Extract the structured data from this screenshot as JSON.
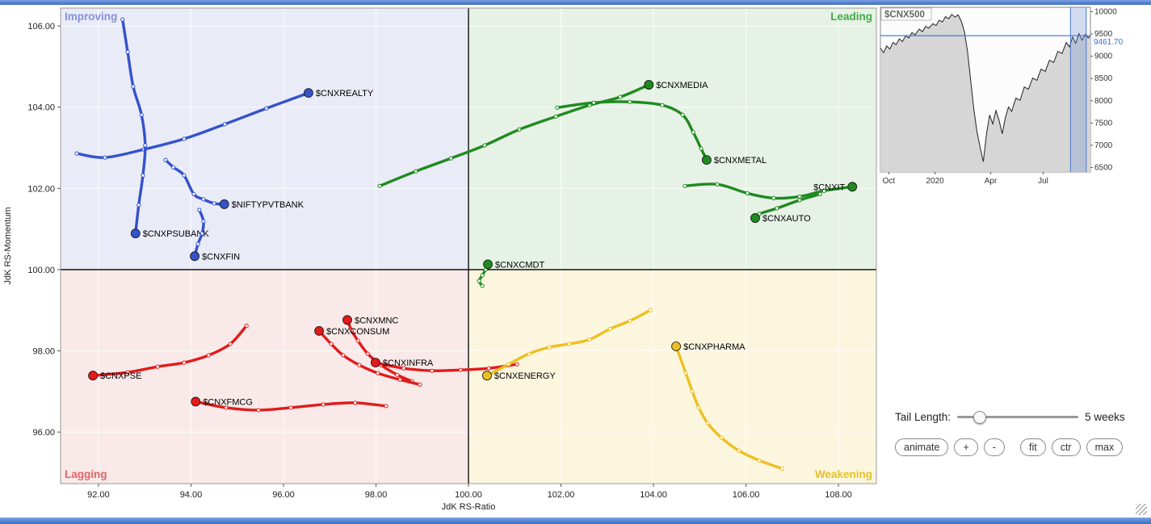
{
  "chart_data": [
    {
      "type": "scatter",
      "xlabel": "JdK RS-Ratio",
      "ylabel": "JdK RS-Momentum",
      "xlim": [
        91.18,
        108.82
      ],
      "ylim": [
        94.73,
        106.44
      ],
      "x_ticks": [
        92,
        94,
        96,
        98,
        100,
        102,
        104,
        106,
        108
      ],
      "y_ticks": [
        96,
        98,
        100,
        102,
        104,
        106
      ],
      "center": [
        100,
        100
      ],
      "quadrants": [
        {
          "name": "Improving",
          "position": "top-left",
          "label_color": "#8690dd",
          "bg": "#e9ebf7"
        },
        {
          "name": "Leading",
          "position": "top-right",
          "label_color": "#44a944",
          "bg": "#e6f2e6"
        },
        {
          "name": "Lagging",
          "position": "bottom-left",
          "label_color": "#e26464",
          "bg": "#f9e9e9"
        },
        {
          "name": "Weakening",
          "position": "bottom-right",
          "label_color": "#e2c32b",
          "bg": "#fcf6df"
        }
      ],
      "series": [
        {
          "name": "$CNXREALTY",
          "color": "#3352cc",
          "label_side": "right",
          "points": [
            [
              91.53,
              102.86
            ],
            [
              92.14,
              102.76
            ],
            [
              92.98,
              102.96
            ],
            [
              93.85,
              103.22
            ],
            [
              94.73,
              103.58
            ],
            [
              95.63,
              103.97
            ],
            [
              96.54,
              104.35
            ]
          ]
        },
        {
          "name": "$CNXPSUBANK",
          "color": "#3352cc",
          "label_side": "right",
          "points": [
            [
              92.52,
              106.16
            ],
            [
              92.63,
              105.36
            ],
            [
              92.75,
              104.51
            ],
            [
              92.93,
              103.81
            ],
            [
              93.01,
              103.06
            ],
            [
              92.96,
              102.32
            ],
            [
              92.87,
              101.59
            ],
            [
              92.8,
              100.89
            ]
          ]
        },
        {
          "name": "$NIFTYPVTBANK",
          "color": "#3352cc",
          "label_side": "right",
          "points": [
            [
              93.45,
              102.7
            ],
            [
              93.62,
              102.52
            ],
            [
              93.85,
              102.32
            ],
            [
              94.06,
              101.86
            ],
            [
              94.27,
              101.73
            ],
            [
              94.5,
              101.63
            ],
            [
              94.72,
              101.61
            ]
          ]
        },
        {
          "name": "$CNXFIN",
          "color": "#3352cc",
          "label_side": "right",
          "points": [
            [
              94.18,
              101.47
            ],
            [
              94.27,
              101.19
            ],
            [
              94.24,
              100.89
            ],
            [
              94.15,
              100.63
            ],
            [
              94.08,
              100.33
            ]
          ]
        },
        {
          "name": "$CNXMEDIA",
          "color": "#1f8a1f",
          "label_side": "right",
          "points": [
            [
              98.08,
              102.06
            ],
            [
              98.86,
              102.42
            ],
            [
              99.62,
              102.74
            ],
            [
              100.35,
              103.06
            ],
            [
              101.1,
              103.45
            ],
            [
              101.89,
              103.77
            ],
            [
              102.62,
              104.05
            ],
            [
              103.28,
              104.25
            ],
            [
              103.9,
              104.55
            ]
          ]
        },
        {
          "name": "$CNXMETAL",
          "color": "#1f8a1f",
          "label_side": "right",
          "points": [
            [
              101.92,
              103.99
            ],
            [
              102.71,
              104.11
            ],
            [
              103.49,
              104.13
            ],
            [
              104.19,
              104.05
            ],
            [
              104.63,
              103.81
            ],
            [
              104.86,
              103.38
            ],
            [
              105.03,
              102.98
            ],
            [
              105.15,
              102.7
            ]
          ]
        },
        {
          "name": "$CNXIT",
          "color": "#1f8a1f",
          "label_side": "left",
          "points": [
            [
              104.68,
              102.06
            ],
            [
              105.38,
              102.1
            ],
            [
              106.03,
              101.88
            ],
            [
              106.6,
              101.76
            ],
            [
              107.16,
              101.8
            ],
            [
              107.69,
              101.94
            ],
            [
              108.3,
              102.04
            ]
          ]
        },
        {
          "name": "$CNXAUTO",
          "color": "#1f8a1f",
          "label_side": "right",
          "points": [
            [
              107.6,
              101.86
            ],
            [
              107.16,
              101.71
            ],
            [
              106.67,
              101.51
            ],
            [
              106.29,
              101.37
            ],
            [
              106.2,
              101.27
            ]
          ]
        },
        {
          "name": "$CNXCMDT",
          "color": "#1f8a1f",
          "label_side": "right",
          "points": [
            [
              100.3,
              99.6
            ],
            [
              100.23,
              99.72
            ],
            [
              100.3,
              99.86
            ],
            [
              100.37,
              100.0
            ],
            [
              100.42,
              100.13
            ]
          ]
        },
        {
          "name": "$CNXPSE",
          "color": "#e11b1b",
          "label_side": "right",
          "points": [
            [
              95.2,
              98.62
            ],
            [
              94.85,
              98.17
            ],
            [
              94.38,
              97.89
            ],
            [
              93.85,
              97.71
            ],
            [
              93.28,
              97.61
            ],
            [
              92.63,
              97.47
            ],
            [
              91.88,
              97.39
            ]
          ]
        },
        {
          "name": "$CNXFMCG",
          "color": "#e11b1b",
          "label_side": "right",
          "points": [
            [
              98.22,
              96.64
            ],
            [
              97.55,
              96.72
            ],
            [
              96.86,
              96.68
            ],
            [
              96.16,
              96.6
            ],
            [
              95.46,
              96.54
            ],
            [
              94.76,
              96.6
            ],
            [
              94.1,
              96.75
            ]
          ]
        },
        {
          "name": "$CNXMNC",
          "color": "#e11b1b",
          "label_side": "right",
          "points": [
            [
              98.78,
              97.25
            ],
            [
              98.46,
              97.41
            ],
            [
              98.11,
              97.65
            ],
            [
              97.82,
              97.93
            ],
            [
              97.61,
              98.25
            ],
            [
              97.47,
              98.51
            ],
            [
              97.38,
              98.76
            ]
          ]
        },
        {
          "name": "$CNXCONSUM",
          "color": "#e11b1b",
          "label_side": "right",
          "points": [
            [
              98.95,
              97.17
            ],
            [
              98.52,
              97.29
            ],
            [
              98.04,
              97.45
            ],
            [
              97.64,
              97.65
            ],
            [
              97.29,
              97.89
            ],
            [
              97.03,
              98.17
            ],
            [
              96.77,
              98.49
            ]
          ]
        },
        {
          "name": "$CNXINFRA",
          "color": "#e11b1b",
          "label_side": "right",
          "points": [
            [
              101.05,
              97.67
            ],
            [
              100.44,
              97.57
            ],
            [
              99.83,
              97.53
            ],
            [
              99.21,
              97.51
            ],
            [
              98.6,
              97.57
            ],
            [
              97.99,
              97.71
            ]
          ]
        },
        {
          "name": "$CNXENERGY",
          "color": "#eebf20",
          "label_side": "right",
          "points": [
            [
              103.93,
              99.0
            ],
            [
              103.49,
              98.74
            ],
            [
              103.06,
              98.54
            ],
            [
              102.62,
              98.28
            ],
            [
              102.18,
              98.17
            ],
            [
              101.75,
              98.09
            ],
            [
              101.31,
              97.93
            ],
            [
              100.87,
              97.67
            ],
            [
              100.4,
              97.39
            ]
          ]
        },
        {
          "name": "$CNXPHARMA",
          "color": "#eebf20",
          "label_side": "right",
          "points": [
            [
              106.78,
              95.1
            ],
            [
              106.29,
              95.3
            ],
            [
              105.85,
              95.54
            ],
            [
              105.47,
              95.86
            ],
            [
              105.17,
              96.22
            ],
            [
              104.98,
              96.6
            ],
            [
              104.84,
              97.0
            ],
            [
              104.7,
              97.45
            ],
            [
              104.49,
              98.11
            ]
          ]
        }
      ]
    },
    {
      "type": "line",
      "title": "$CNX500",
      "last_price": "9461.70",
      "price_line_value": 9461.7,
      "ylim": [
        6400,
        10100
      ],
      "y_ticks": [
        6500,
        7000,
        7500,
        8000,
        8500,
        9000,
        9500,
        10000
      ],
      "x_ticks": [
        {
          "label": "Oct",
          "pos": 0.04
        },
        {
          "label": "2020",
          "pos": 0.26
        },
        {
          "label": "Apr",
          "pos": 0.525
        },
        {
          "label": "Jul",
          "pos": 0.775
        }
      ],
      "highlight_band": [
        0.905,
        0.98
      ],
      "points": [
        [
          0.0,
          9180
        ],
        [
          0.015,
          9080
        ],
        [
          0.03,
          9230
        ],
        [
          0.045,
          9160
        ],
        [
          0.06,
          9310
        ],
        [
          0.075,
          9260
        ],
        [
          0.09,
          9390
        ],
        [
          0.105,
          9330
        ],
        [
          0.12,
          9460
        ],
        [
          0.135,
          9410
        ],
        [
          0.15,
          9530
        ],
        [
          0.165,
          9480
        ],
        [
          0.185,
          9610
        ],
        [
          0.2,
          9550
        ],
        [
          0.215,
          9670
        ],
        [
          0.23,
          9630
        ],
        [
          0.25,
          9730
        ],
        [
          0.265,
          9690
        ],
        [
          0.28,
          9810
        ],
        [
          0.295,
          9770
        ],
        [
          0.31,
          9890
        ],
        [
          0.325,
          9840
        ],
        [
          0.34,
          9940
        ],
        [
          0.355,
          9880
        ],
        [
          0.37,
          9930
        ],
        [
          0.385,
          9790
        ],
        [
          0.4,
          9550
        ],
        [
          0.415,
          9100
        ],
        [
          0.43,
          8450
        ],
        [
          0.445,
          7800
        ],
        [
          0.46,
          7300
        ],
        [
          0.475,
          6950
        ],
        [
          0.49,
          6630
        ],
        [
          0.505,
          7250
        ],
        [
          0.52,
          7680
        ],
        [
          0.535,
          7480
        ],
        [
          0.55,
          7780
        ],
        [
          0.565,
          7560
        ],
        [
          0.58,
          7260
        ],
        [
          0.595,
          7620
        ],
        [
          0.61,
          7860
        ],
        [
          0.625,
          7760
        ],
        [
          0.645,
          8060
        ],
        [
          0.665,
          8010
        ],
        [
          0.685,
          8310
        ],
        [
          0.705,
          8260
        ],
        [
          0.725,
          8510
        ],
        [
          0.745,
          8460
        ],
        [
          0.765,
          8710
        ],
        [
          0.785,
          8660
        ],
        [
          0.805,
          8910
        ],
        [
          0.825,
          8860
        ],
        [
          0.845,
          9110
        ],
        [
          0.865,
          9060
        ],
        [
          0.885,
          9310
        ],
        [
          0.9,
          9210
        ],
        [
          0.915,
          9430
        ],
        [
          0.93,
          9290
        ],
        [
          0.945,
          9510
        ],
        [
          0.96,
          9360
        ],
        [
          0.975,
          9490
        ],
        [
          0.99,
          9410
        ],
        [
          1.0,
          9461.7
        ]
      ]
    }
  ],
  "controls": {
    "tail_length_label": "Tail Length:",
    "tail_length_value": "5 weeks",
    "slider_position": 0.18,
    "buttons": [
      "animate",
      "+",
      "-",
      "fit",
      "ctr",
      "max"
    ]
  }
}
